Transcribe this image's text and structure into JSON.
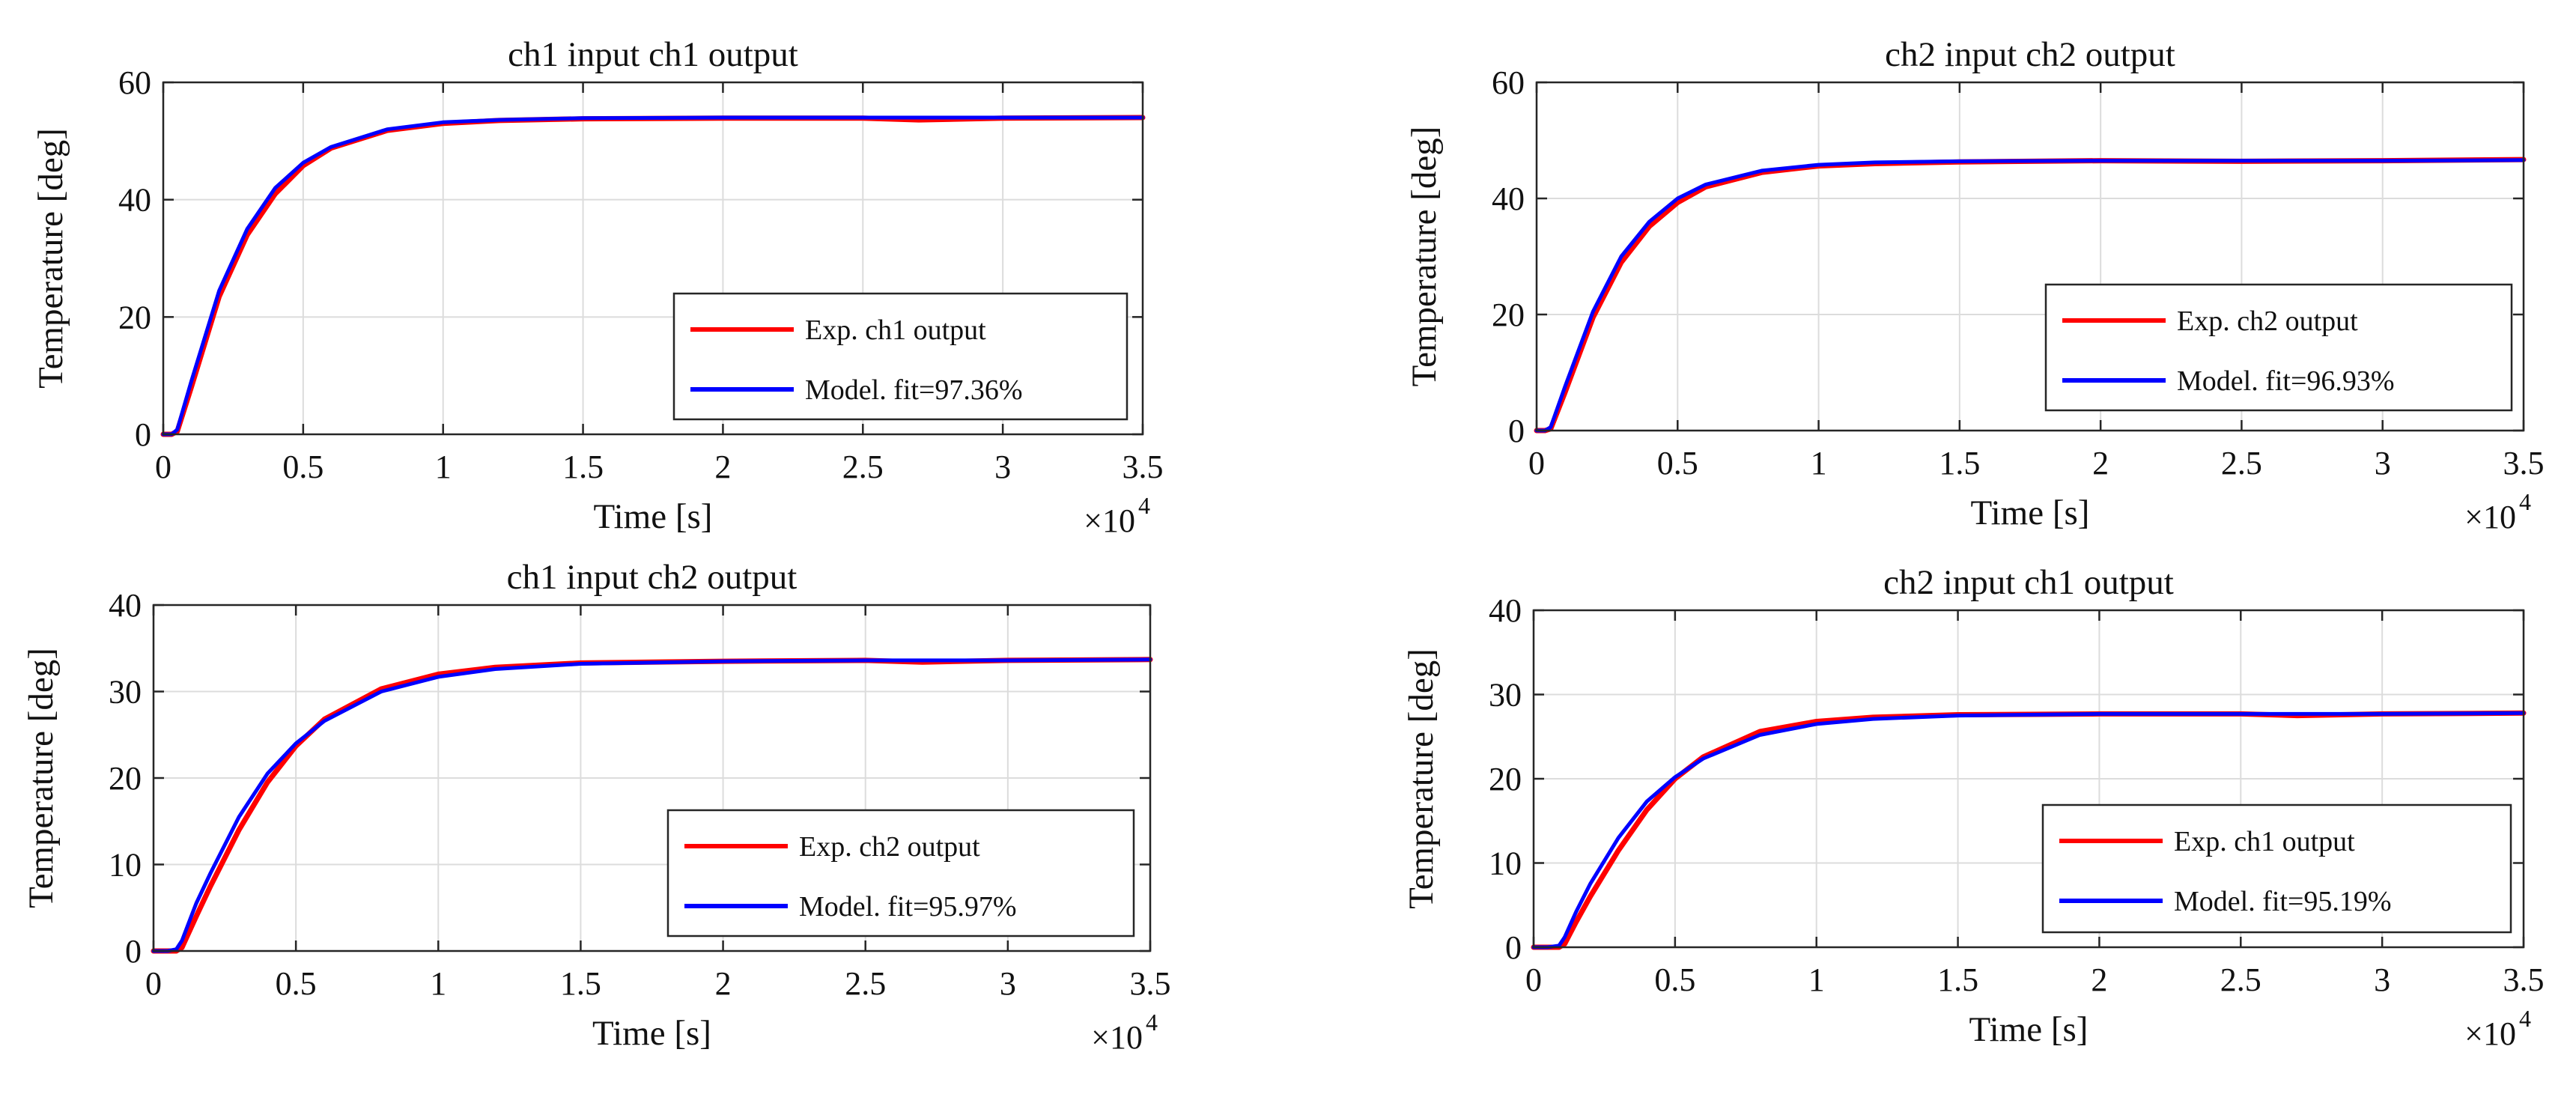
{
  "chart_data": [
    {
      "type": "line",
      "title": "ch1 input ch1 output",
      "xlabel": "Time [s]",
      "ylabel": "Temperature [deg]",
      "x_multiplier": "×10",
      "x_multiplier_exp": "4",
      "xlim": [
        0,
        3.5
      ],
      "ylim": [
        0,
        60
      ],
      "xticks": [
        0,
        0.5,
        1,
        1.5,
        2,
        2.5,
        3,
        3.5
      ],
      "xtick_labels": [
        "0",
        "0.5",
        "1",
        "1.5",
        "2",
        "2.5",
        "3",
        "3.5"
      ],
      "yticks": [
        0,
        20,
        40,
        60
      ],
      "ytick_labels": [
        "0",
        "20",
        "40",
        "60"
      ],
      "grid": true,
      "legend_position": "bottom-right",
      "series": [
        {
          "name": "Exp. ch1 output",
          "color": "#ff0000",
          "x": [
            0,
            0.03,
            0.05,
            0.1,
            0.2,
            0.3,
            0.4,
            0.5,
            0.6,
            0.8,
            1.0,
            1.2,
            1.5,
            2.0,
            2.5,
            2.7,
            3.0,
            3.5
          ],
          "values": [
            0,
            0,
            0.5,
            8,
            23.5,
            34,
            41,
            45.8,
            48.8,
            51.8,
            53.0,
            53.5,
            53.8,
            53.9,
            53.9,
            53.6,
            53.9,
            54.0
          ]
        },
        {
          "name": "Model. fit=97.36%",
          "color": "#0000ff",
          "x": [
            0,
            0.03,
            0.05,
            0.1,
            0.2,
            0.3,
            0.4,
            0.5,
            0.6,
            0.8,
            1.0,
            1.2,
            1.5,
            2.0,
            2.5,
            3.0,
            3.5
          ],
          "values": [
            0,
            0,
            0.8,
            9,
            24.5,
            35,
            42,
            46.3,
            49,
            52,
            53.2,
            53.6,
            53.9,
            54,
            54,
            54,
            54
          ]
        }
      ]
    },
    {
      "type": "line",
      "title": "ch2 input ch2 output",
      "xlabel": "Time [s]",
      "ylabel": "Temperature [deg]",
      "x_multiplier": "×10",
      "x_multiplier_exp": "4",
      "xlim": [
        0,
        3.5
      ],
      "ylim": [
        0,
        60
      ],
      "xticks": [
        0,
        0.5,
        1,
        1.5,
        2,
        2.5,
        3,
        3.5
      ],
      "xtick_labels": [
        "0",
        "0.5",
        "1",
        "1.5",
        "2",
        "2.5",
        "3",
        "3.5"
      ],
      "yticks": [
        0,
        20,
        40,
        60
      ],
      "ytick_labels": [
        "0",
        "20",
        "40",
        "60"
      ],
      "grid": true,
      "legend_position": "bottom-right",
      "series": [
        {
          "name": "Exp. ch2 output",
          "color": "#ff0000",
          "x": [
            0,
            0.03,
            0.05,
            0.1,
            0.2,
            0.3,
            0.4,
            0.5,
            0.6,
            0.8,
            1.0,
            1.2,
            1.5,
            2.0,
            2.5,
            3.0,
            3.5
          ],
          "values": [
            0,
            0,
            0.3,
            6.5,
            19.5,
            29,
            35.2,
            39.3,
            42,
            44.5,
            45.6,
            46.0,
            46.3,
            46.5,
            46.4,
            46.5,
            46.7
          ]
        },
        {
          "name": "Model. fit=96.93%",
          "color": "#0000ff",
          "x": [
            0,
            0.03,
            0.05,
            0.1,
            0.2,
            0.3,
            0.4,
            0.5,
            0.6,
            0.8,
            1.0,
            1.2,
            1.5,
            2.0,
            2.5,
            3.0,
            3.5
          ],
          "values": [
            0,
            0,
            0.6,
            7.5,
            20.5,
            30,
            36,
            40,
            42.4,
            44.8,
            45.8,
            46.2,
            46.4,
            46.5,
            46.5,
            46.5,
            46.6
          ]
        }
      ]
    },
    {
      "type": "line",
      "title": "ch1 input ch2 output",
      "xlabel": "Time [s]",
      "ylabel": "Temperature [deg]",
      "x_multiplier": "×10",
      "x_multiplier_exp": "4",
      "xlim": [
        0,
        3.5
      ],
      "ylim": [
        0,
        40
      ],
      "xticks": [
        0,
        0.5,
        1,
        1.5,
        2,
        2.5,
        3,
        3.5
      ],
      "xtick_labels": [
        "0",
        "0.5",
        "1",
        "1.5",
        "2",
        "2.5",
        "3",
        "3.5"
      ],
      "yticks": [
        0,
        10,
        20,
        30,
        40
      ],
      "ytick_labels": [
        "0",
        "10",
        "20",
        "30",
        "40"
      ],
      "grid": true,
      "legend_position": "bottom-right",
      "series": [
        {
          "name": "Exp. ch2 output",
          "color": "#ff0000",
          "x": [
            0,
            0.05,
            0.08,
            0.1,
            0.15,
            0.2,
            0.3,
            0.4,
            0.5,
            0.6,
            0.8,
            1.0,
            1.2,
            1.5,
            2.0,
            2.5,
            2.7,
            3.0,
            3.5
          ],
          "values": [
            0,
            0,
            0,
            0.4,
            4,
            7.5,
            14,
            19.5,
            23.7,
            26.8,
            30.3,
            32.0,
            32.8,
            33.3,
            33.5,
            33.6,
            33.4,
            33.6,
            33.7
          ]
        },
        {
          "name": "Model. fit=95.97%",
          "color": "#0000ff",
          "x": [
            0,
            0.05,
            0.08,
            0.1,
            0.15,
            0.2,
            0.3,
            0.4,
            0.5,
            0.6,
            0.8,
            1.0,
            1.2,
            1.5,
            2.0,
            2.5,
            3.0,
            3.5
          ],
          "values": [
            0,
            0,
            0.2,
            1.2,
            5.5,
            9,
            15.5,
            20.5,
            24,
            26.6,
            30,
            31.7,
            32.6,
            33.2,
            33.5,
            33.6,
            33.6,
            33.7
          ]
        }
      ]
    },
    {
      "type": "line",
      "title": "ch2 input ch1 output",
      "xlabel": "Time [s]",
      "ylabel": "Temperature [deg]",
      "x_multiplier": "×10",
      "x_multiplier_exp": "4",
      "xlim": [
        0,
        3.5
      ],
      "ylim": [
        0,
        40
      ],
      "xticks": [
        0,
        0.5,
        1,
        1.5,
        2,
        2.5,
        3,
        3.5
      ],
      "xtick_labels": [
        "0",
        "0.5",
        "1",
        "1.5",
        "2",
        "2.5",
        "3",
        "3.5"
      ],
      "yticks": [
        0,
        10,
        20,
        30,
        40
      ],
      "ytick_labels": [
        "0",
        "10",
        "20",
        "30",
        "40"
      ],
      "grid": true,
      "legend_position": "bottom-right",
      "series": [
        {
          "name": "Exp. ch1 output",
          "color": "#ff0000",
          "x": [
            0,
            0.05,
            0.09,
            0.11,
            0.15,
            0.2,
            0.3,
            0.4,
            0.5,
            0.6,
            0.8,
            1.0,
            1.2,
            1.5,
            2.0,
            2.5,
            2.7,
            3.0,
            3.5
          ],
          "values": [
            0,
            0,
            0,
            0.4,
            3,
            6,
            11.5,
            16.3,
            20,
            22.6,
            25.6,
            26.8,
            27.3,
            27.6,
            27.7,
            27.7,
            27.5,
            27.7,
            27.8
          ]
        },
        {
          "name": "Model. fit=95.19%",
          "color": "#0000ff",
          "x": [
            0,
            0.05,
            0.09,
            0.11,
            0.15,
            0.2,
            0.3,
            0.4,
            0.5,
            0.6,
            0.8,
            1.0,
            1.2,
            1.5,
            2.0,
            2.5,
            3.0,
            3.5
          ],
          "values": [
            0,
            0,
            0.2,
            1.2,
            4.2,
            7.5,
            13,
            17.3,
            20.2,
            22.4,
            25.2,
            26.5,
            27.1,
            27.5,
            27.7,
            27.7,
            27.7,
            27.8
          ]
        }
      ]
    }
  ]
}
